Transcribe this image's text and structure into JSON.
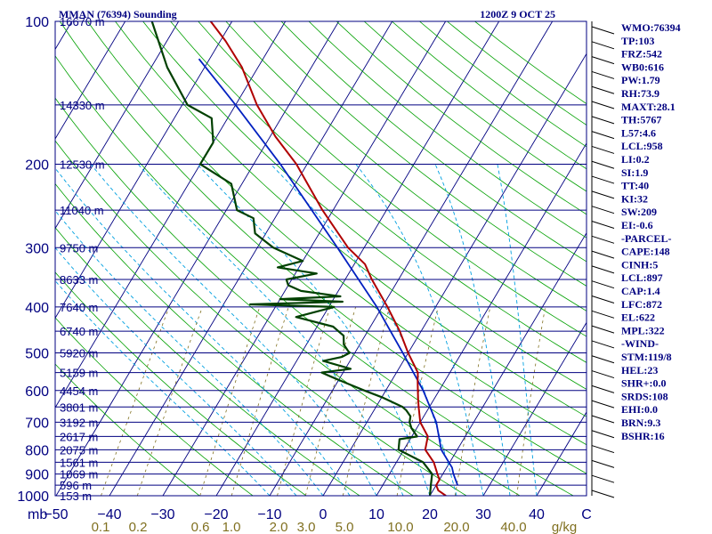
{
  "header": {
    "station": "MMAN (76394) Sounding",
    "time": "1200Z  9 OCT 25"
  },
  "colors": {
    "frame": "#000080",
    "isobar": "#000080",
    "isotherm": "#000080",
    "dry_adiabat": "#00a000",
    "moist_adiabat": "#00a0e0",
    "mixing_ratio": "#807020",
    "temperature": "#b00000",
    "dewpoint": "#004000",
    "parcel": "#0020c0"
  },
  "chart_data": {
    "type": "skew-t",
    "pressure_unit": "mb",
    "pressure_ticks": [
      100,
      200,
      300,
      400,
      500,
      600,
      700,
      800,
      900,
      1000
    ],
    "pressure_tick_labels": [
      "100",
      "200",
      "300",
      "400",
      "500",
      "600",
      "700",
      "800",
      "900",
      "1000"
    ],
    "temperature_ticks": [
      -50,
      -40,
      -30,
      -20,
      -10,
      0,
      10,
      20,
      30,
      40
    ],
    "temperature_tick_labels": [
      "−50",
      "−40",
      "−30",
      "−20",
      "−10",
      "0",
      "10",
      "20",
      "30",
      "40"
    ],
    "temperature_unit": "C",
    "mixing_ratio_ticks": [
      0.1,
      0.2,
      0.6,
      1.0,
      2.0,
      3.0,
      5.0,
      10.0,
      20.0,
      40.0
    ],
    "mixing_ratio_labels": [
      "0.1",
      "0.2",
      "0.6",
      "1.0",
      "2.0",
      "3.0",
      "5.0",
      "10.0",
      "20.0",
      "40.0"
    ],
    "mixing_ratio_unit": "g/kg",
    "heights": [
      {
        "p": 100,
        "label": "16670 m"
      },
      {
        "p": 150,
        "label": "14330 m"
      },
      {
        "p": 200,
        "label": "12530 m"
      },
      {
        "p": 250,
        "label": "11040 m"
      },
      {
        "p": 300,
        "label": "9750 m"
      },
      {
        "p": 350,
        "label": "8633 m"
      },
      {
        "p": 400,
        "label": "7640 m"
      },
      {
        "p": 450,
        "label": "6740 m"
      },
      {
        "p": 500,
        "label": "5920 m"
      },
      {
        "p": 550,
        "label": "5159 m"
      },
      {
        "p": 600,
        "label": "4454 m"
      },
      {
        "p": 650,
        "label": "3801 m"
      },
      {
        "p": 700,
        "label": "3192 m"
      },
      {
        "p": 750,
        "label": "2617 m"
      },
      {
        "p": 800,
        "label": "2075 m"
      },
      {
        "p": 850,
        "label": "1561 m"
      },
      {
        "p": 900,
        "label": "1069 m"
      },
      {
        "p": 950,
        "label": "596 m"
      },
      {
        "p": 1000,
        "label": "153 m"
      }
    ],
    "temperature": [
      [
        1000,
        23
      ],
      [
        975,
        21
      ],
      [
        950,
        20
      ],
      [
        925,
        20
      ],
      [
        900,
        19
      ],
      [
        850,
        17
      ],
      [
        800,
        14
      ],
      [
        750,
        13
      ],
      [
        700,
        10
      ],
      [
        650,
        8
      ],
      [
        625,
        7
      ],
      [
        600,
        6
      ],
      [
        575,
        5
      ],
      [
        550,
        4
      ],
      [
        500,
        0
      ],
      [
        450,
        -4
      ],
      [
        400,
        -9
      ],
      [
        350,
        -15
      ],
      [
        325,
        -18
      ],
      [
        300,
        -23
      ],
      [
        250,
        -32
      ],
      [
        200,
        -42
      ],
      [
        175,
        -49
      ],
      [
        150,
        -56
      ],
      [
        125,
        -63
      ],
      [
        110,
        -69
      ],
      [
        100,
        -74
      ]
    ],
    "dewpoint": [
      [
        1000,
        20
      ],
      [
        950,
        19
      ],
      [
        900,
        18
      ],
      [
        850,
        15
      ],
      [
        800,
        9
      ],
      [
        760,
        8
      ],
      [
        750,
        11
      ],
      [
        720,
        9
      ],
      [
        700,
        8
      ],
      [
        680,
        7.5
      ],
      [
        660,
        6
      ],
      [
        650,
        5
      ],
      [
        620,
        0
      ],
      [
        600,
        -4
      ],
      [
        580,
        -8
      ],
      [
        560,
        -12
      ],
      [
        550,
        -14
      ],
      [
        540,
        -9
      ],
      [
        520,
        -15
      ],
      [
        510,
        -12
      ],
      [
        500,
        -11
      ],
      [
        480,
        -13
      ],
      [
        460,
        -14
      ],
      [
        440,
        -17
      ],
      [
        420,
        -25
      ],
      [
        410,
        -22
      ],
      [
        400,
        -19
      ],
      [
        395,
        -35
      ],
      [
        390,
        -18
      ],
      [
        385,
        -30
      ],
      [
        380,
        -19
      ],
      [
        370,
        -27
      ],
      [
        360,
        -30
      ],
      [
        350,
        -31
      ],
      [
        340,
        -26
      ],
      [
        330,
        -34
      ],
      [
        320,
        -30
      ],
      [
        300,
        -37
      ],
      [
        280,
        -42
      ],
      [
        260,
        -44
      ],
      [
        250,
        -48
      ],
      [
        220,
        -52
      ],
      [
        200,
        -60
      ],
      [
        180,
        -60
      ],
      [
        160,
        -63
      ],
      [
        150,
        -69
      ],
      [
        125,
        -77
      ],
      [
        100,
        -85
      ]
    ],
    "parcel": [
      [
        950,
        24
      ],
      [
        900,
        22
      ],
      [
        872,
        21
      ],
      [
        800,
        17
      ],
      [
        700,
        13
      ],
      [
        600,
        7
      ],
      [
        500,
        -1
      ],
      [
        400,
        -11
      ],
      [
        300,
        -25
      ],
      [
        250,
        -34
      ],
      [
        200,
        -45
      ],
      [
        150,
        -60
      ],
      [
        120,
        -72
      ]
    ]
  },
  "stats": [
    "WMO:76394",
    "TP:103",
    "FRZ:542",
    "WB0:616",
    "PW:1.79",
    "RH:73.9",
    "MAXT:28.1",
    "TH:5767",
    "L57:4.6",
    "LCL:958",
    "LI:0.2",
    "SI:1.9",
    "TT:40",
    "KI:32",
    "SW:209",
    "EI:-0.6",
    "-PARCEL-",
    "CAPE:148",
    "CINH:5",
    "LCL:897",
    "CAP:1.4",
    "LFC:872",
    "EL:622",
    "MPL:322",
    "-WIND-",
    "STM:119/8",
    "HEL:23",
    "SHR+:0.0",
    "SRDS:108",
    "EHI:0.0",
    "BRN:9.3",
    "BSHR:16"
  ]
}
